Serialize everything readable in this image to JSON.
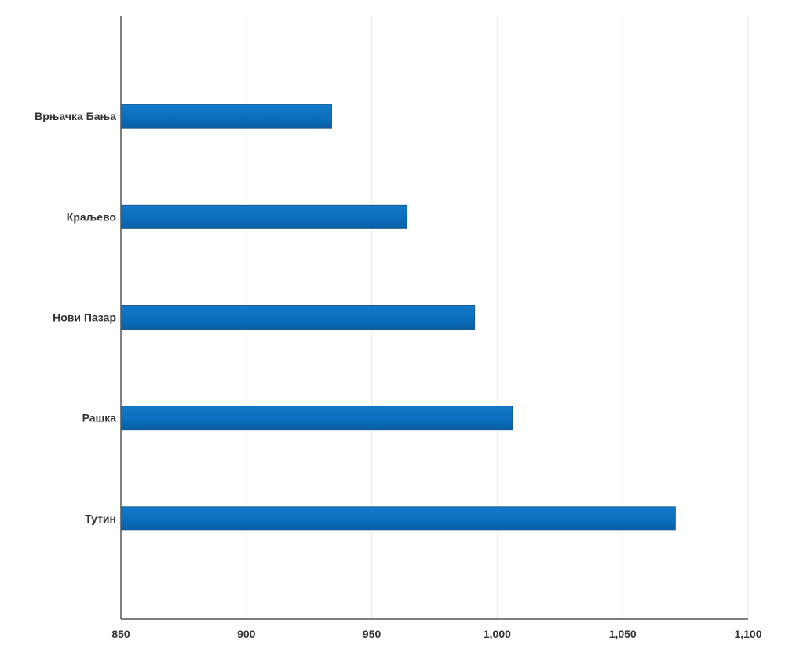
{
  "chart_data": {
    "type": "bar",
    "orientation": "horizontal",
    "categories": [
      "Врњачка Бања",
      "Краљево",
      "Нови Пазар",
      "Рашка",
      "Тутин"
    ],
    "values": [
      934,
      964,
      991,
      1006,
      1071
    ],
    "xlim": [
      850,
      1100
    ],
    "xticks": [
      850,
      900,
      950,
      1000,
      1050,
      1100
    ],
    "xtick_labels": [
      "850",
      "900",
      "950",
      "1,000",
      "1,050",
      "1,100"
    ],
    "title": "",
    "xlabel": "",
    "ylabel": "",
    "grid": "vertical",
    "legend": "none",
    "colors": {
      "bar": "#0a6ebd",
      "bar_edge": "#1f5a8c",
      "axis": "#555555",
      "grid": "#ebebeb"
    }
  }
}
